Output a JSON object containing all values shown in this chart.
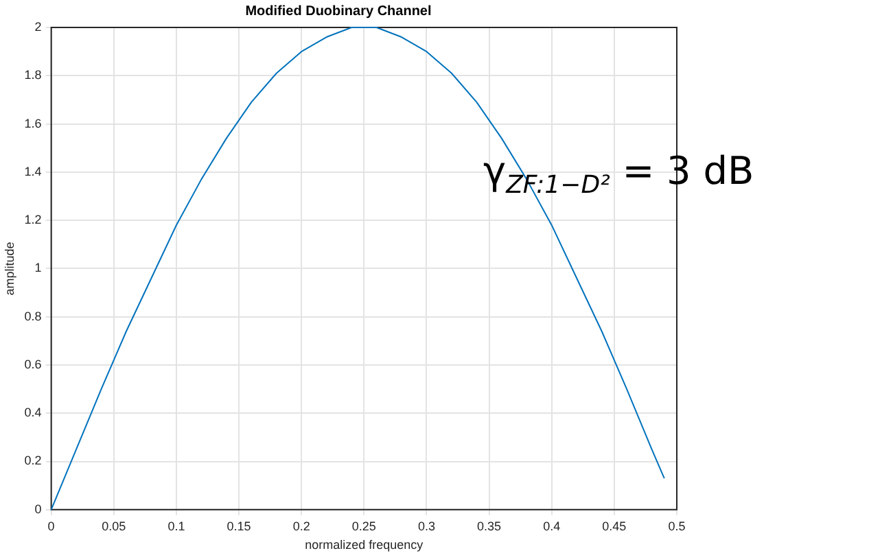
{
  "chart_data": {
    "type": "line",
    "title": "Modified Duobinary Channel",
    "xlabel": "normalized frequency",
    "ylabel": "amplitude",
    "x": [
      0,
      0.02,
      0.04,
      0.06,
      0.08,
      0.1,
      0.12,
      0.14,
      0.16,
      0.18,
      0.2,
      0.22,
      0.24,
      0.25,
      0.26,
      0.28,
      0.3,
      0.32,
      0.34,
      0.36,
      0.38,
      0.4,
      0.42,
      0.44,
      0.46,
      0.48,
      0.49
    ],
    "series": [
      {
        "color": "#0072bd",
        "values": [
          0,
          0.25,
          0.5,
          0.74,
          0.96,
          1.18,
          1.37,
          1.54,
          1.69,
          1.81,
          1.9,
          1.96,
          2,
          2,
          2,
          1.96,
          1.9,
          1.81,
          1.69,
          1.54,
          1.37,
          1.18,
          0.96,
          0.74,
          0.5,
          0.25,
          0.13
        ]
      }
    ],
    "xlim": [
      0,
      0.5
    ],
    "xticks": [
      0,
      0.05,
      0.1,
      0.15,
      0.2,
      0.25,
      0.3,
      0.35,
      0.4,
      0.45,
      0.5
    ],
    "ylim": [
      0,
      2
    ],
    "yticks": [
      0,
      0.2,
      0.4,
      0.6,
      0.8,
      1,
      1.2,
      1.4,
      1.6,
      1.8,
      2
    ],
    "grid": true,
    "legend": false,
    "marker": "none",
    "line_style": "solid",
    "annotations": [
      "γ$_{ZF:1−D²}$ = 3 dB"
    ]
  }
}
